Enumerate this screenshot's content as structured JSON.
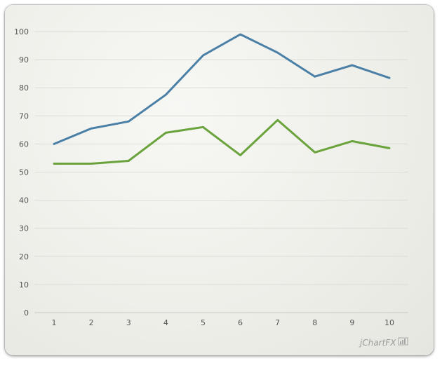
{
  "chart_data": {
    "type": "line",
    "title": "",
    "xlabel": "",
    "ylabel": "",
    "categories": [
      "1",
      "2",
      "3",
      "4",
      "5",
      "6",
      "7",
      "8",
      "9",
      "10"
    ],
    "ylim": [
      0,
      100
    ],
    "yticks": [
      "0",
      "10",
      "20",
      "30",
      "40",
      "50",
      "60",
      "70",
      "80",
      "90",
      "100"
    ],
    "grid": true,
    "legend": "none",
    "series": [
      {
        "color": "#4a7fa6",
        "values": [
          60,
          65.5,
          68,
          77.5,
          91.5,
          99,
          92.5,
          84,
          88,
          83.5
        ]
      },
      {
        "color": "#6aa33c",
        "values": [
          53,
          53,
          54,
          64,
          66,
          56,
          68.5,
          57,
          61,
          58.5
        ]
      }
    ]
  },
  "branding": {
    "text": "jChartFX"
  }
}
